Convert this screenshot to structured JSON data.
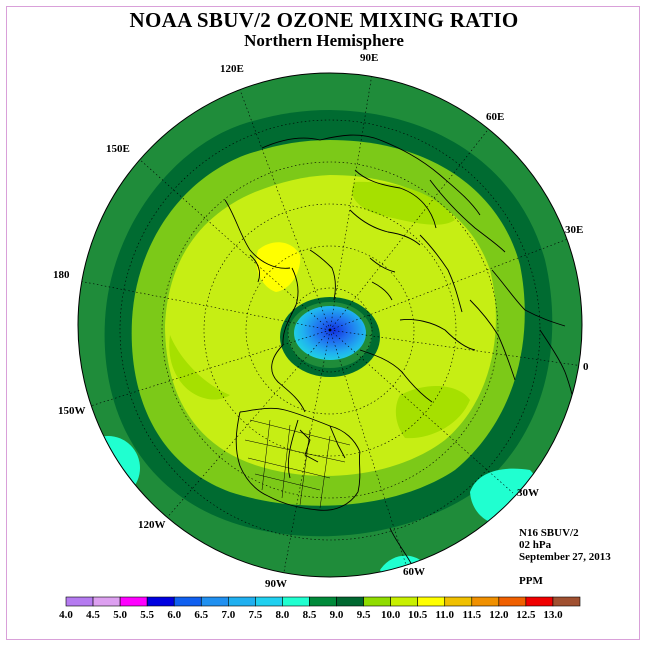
{
  "title": "NOAA SBUV/2 OZONE MIXING RATIO",
  "subtitle": "Northern Hemisphere",
  "info": {
    "instrument": "N16 SBUV/2",
    "level": "02 hPa",
    "date": "September 27, 2013",
    "units": "PPM"
  },
  "longitude_labels": [
    "90E",
    "60E",
    "30E",
    "0",
    "30W",
    "60W",
    "90W",
    "120W",
    "150W",
    "180",
    "150E",
    "120E"
  ],
  "colorbar": {
    "labels": [
      "4.0",
      "4.5",
      "5.0",
      "5.5",
      "6.0",
      "6.5",
      "7.0",
      "7.5",
      "8.0",
      "8.5",
      "9.0",
      "9.5",
      "10.0",
      "10.5",
      "11.0",
      "11.5",
      "12.0",
      "12.5",
      "13.0"
    ],
    "colors": [
      "#b57bf0",
      "#dda0f0",
      "#ff00ff",
      "#0000e0",
      "#1060f0",
      "#2090f0",
      "#20b0f0",
      "#20d0f0",
      "#20ffd0",
      "#008a3a",
      "#006830",
      "#90dc00",
      "#c8f000",
      "#ffff00",
      "#f0c000",
      "#f09000",
      "#f06000",
      "#f00000",
      "#a05030"
    ]
  },
  "map_colors": {
    "outer_ring": "#1f8c3a",
    "dark_band": "#006b31",
    "mid_band": "#7cc918",
    "inner": "#c6ee14",
    "high": "#ffff00",
    "polar_low": "#2a7ef0"
  }
}
